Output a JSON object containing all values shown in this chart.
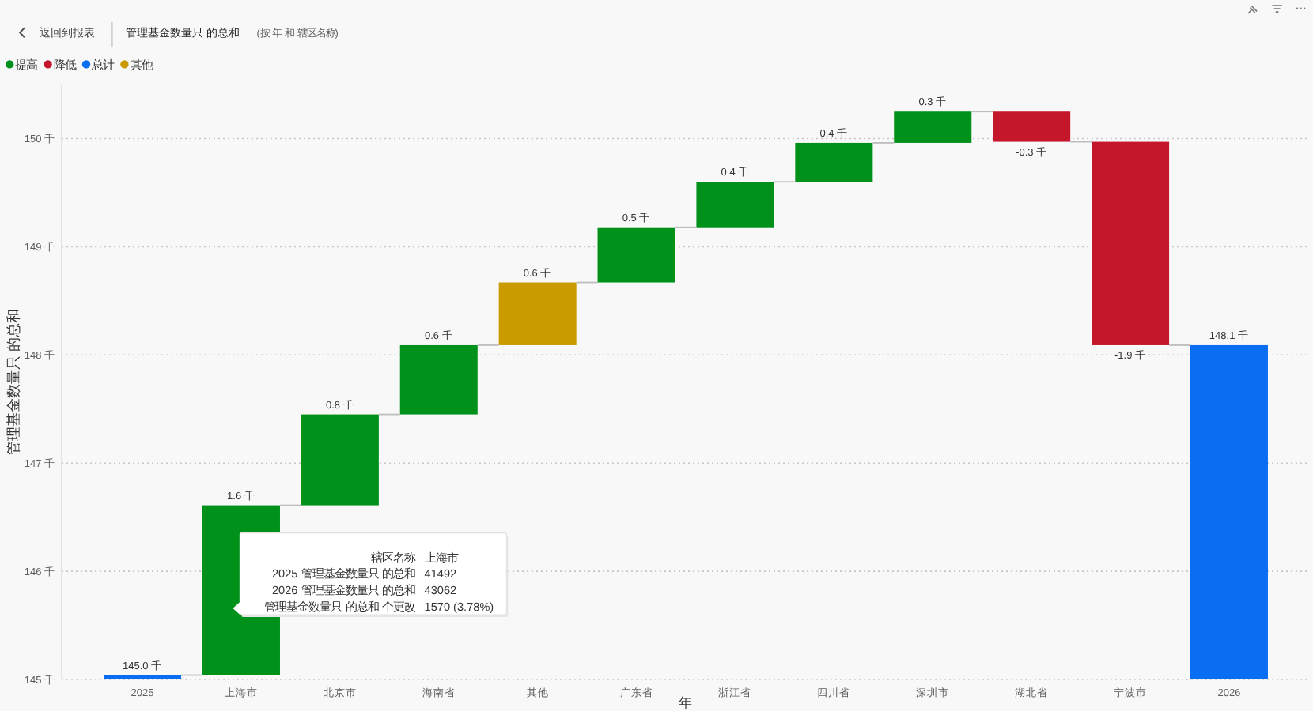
{
  "chart_data": {
    "type": "bar",
    "title": "管理基金数量只 的总和",
    "subtitle": "(按 年 和 辖区名称)",
    "xlabel": "年",
    "ylabel": "管理基金数量只 的总和",
    "categories": [
      "2025",
      "上海市",
      "北京市",
      "海南省",
      "其他",
      "广东省",
      "浙江省",
      "四川省",
      "深圳市",
      "湖北省",
      "宁波市",
      "2026"
    ],
    "series": [
      {
        "name": "提高",
        "color": "#00911a",
        "values": [
          null,
          1.57,
          0.84,
          0.64,
          null,
          0.51,
          0.42,
          0.36,
          0.29,
          null,
          null,
          null
        ],
        "base": [
          null,
          145.04,
          146.61,
          147.45,
          null,
          148.67,
          149.18,
          149.6,
          149.96,
          null,
          null,
          null
        ],
        "value_labels": [
          null,
          "1.6 千",
          "0.8 千",
          "0.6 千",
          null,
          "0.5 千",
          "0.4 千",
          "0.4 千",
          "0.3 千",
          null,
          null,
          null
        ]
      },
      {
        "name": "降低",
        "color": "#c5172b",
        "values": [
          null,
          null,
          null,
          null,
          null,
          null,
          null,
          null,
          null,
          -0.28,
          -1.88,
          null
        ],
        "base": [
          null,
          null,
          null,
          null,
          null,
          null,
          null,
          null,
          null,
          150.25,
          149.97,
          null
        ],
        "value_labels": [
          null,
          null,
          null,
          null,
          null,
          null,
          null,
          null,
          null,
          "-0.3 千",
          "-1.9 千",
          null
        ]
      },
      {
        "name": "总计",
        "color": "#0a6ef2",
        "values": [
          145.04,
          null,
          null,
          null,
          null,
          null,
          null,
          null,
          null,
          null,
          null,
          148.09
        ],
        "value_labels": [
          "145.0 千",
          null,
          null,
          null,
          null,
          null,
          null,
          null,
          null,
          null,
          null,
          "148.1 千"
        ]
      },
      {
        "name": "其他",
        "color": "#c99b00",
        "values": [
          null,
          null,
          null,
          null,
          0.58,
          null,
          null,
          null,
          null,
          null,
          null,
          null
        ],
        "base": [
          null,
          null,
          null,
          null,
          148.09,
          null,
          null,
          null,
          null,
          null,
          null,
          null
        ],
        "value_labels": [
          null,
          null,
          null,
          null,
          "0.6 千",
          null,
          null,
          null,
          null,
          null,
          null,
          null
        ]
      }
    ],
    "ylim": [
      145,
      150.5
    ],
    "yticks": [
      {
        "value": 145,
        "label": "145 千"
      },
      {
        "value": 146,
        "label": "146 千"
      },
      {
        "value": 147,
        "label": "147 千"
      },
      {
        "value": 148,
        "label": "148 千"
      },
      {
        "value": 149,
        "label": "149 千"
      },
      {
        "value": 150,
        "label": "150 千"
      }
    ],
    "grid": "y",
    "legend": "top left",
    "annotations": [
      "返回到报表",
      "辖区名称",
      "上海市",
      "2025 管理基金数量只 的总和",
      "41492",
      "2026 管理基金数量只 的总和",
      "43062",
      "管理基金数量只 的总和 个更改",
      "1570 (3.78%)"
    ]
  }
}
